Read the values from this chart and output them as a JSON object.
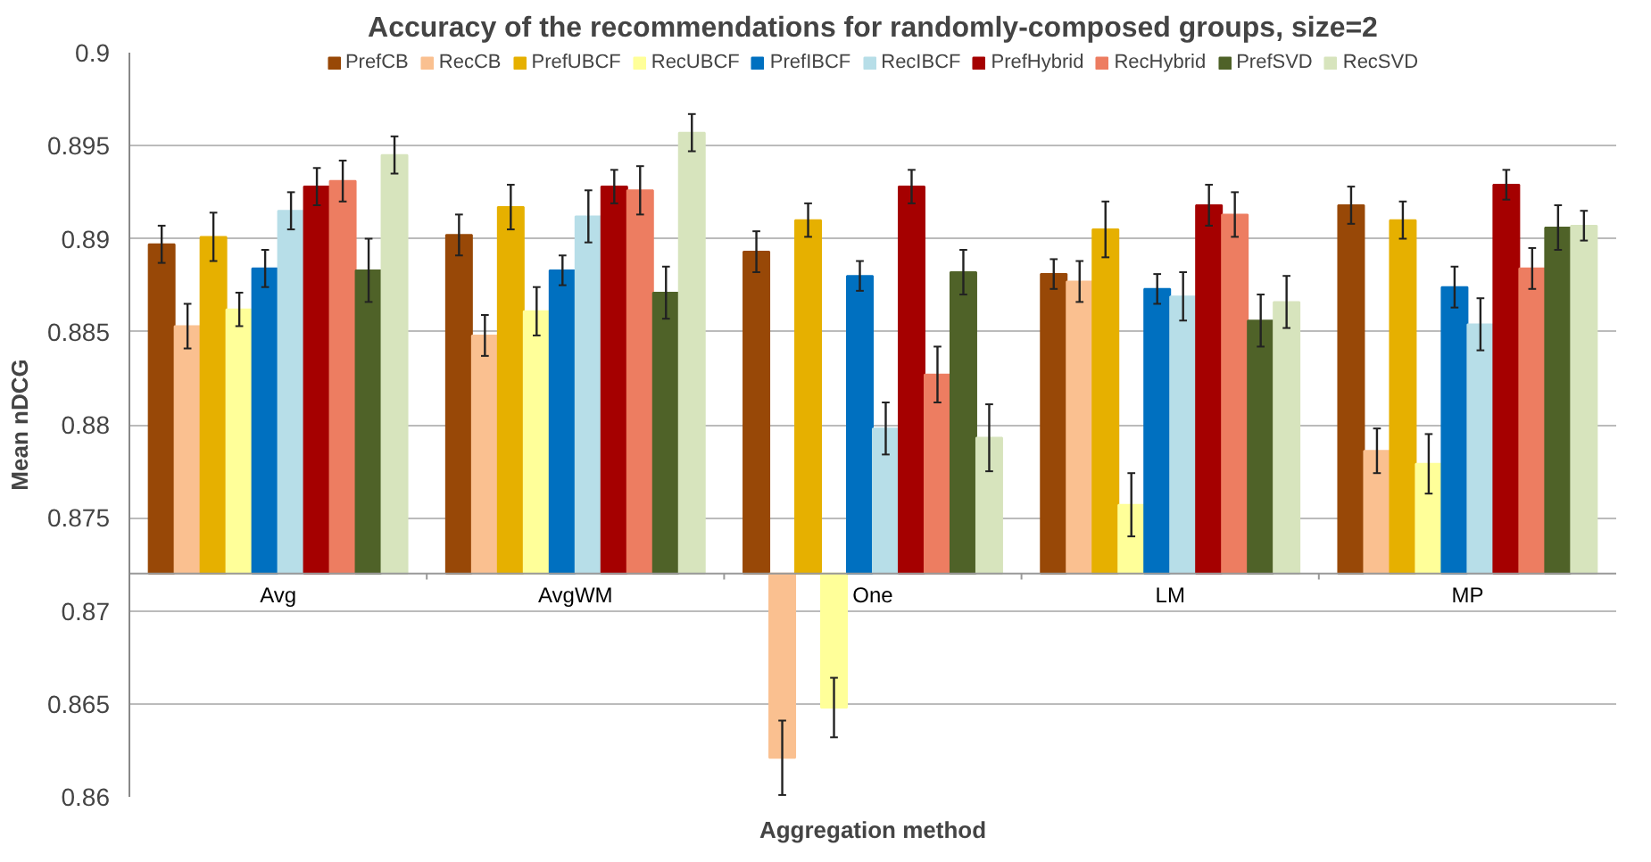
{
  "chart_data": {
    "type": "bar",
    "title": "Accuracy of the recommendations for randomly-composed groups, size=2",
    "xlabel": "Aggregation method",
    "ylabel": "Mean nDCG",
    "categories": [
      "Avg",
      "AvgWM",
      "One",
      "LM",
      "MP"
    ],
    "ylim": [
      0.86,
      0.9
    ],
    "yticks": [
      0.86,
      0.865,
      0.87,
      0.875,
      0.88,
      0.885,
      0.89,
      0.895,
      0.9
    ],
    "grid": "y",
    "legend": "top",
    "series": [
      {
        "name": "PrefCB",
        "color": "#984807",
        "base": [
          0.872,
          0.872,
          0.872,
          0.872,
          0.872
        ],
        "values": [
          0.0177,
          0.0182,
          0.0173,
          0.0161,
          0.0198
        ],
        "errors": [
          0.001,
          0.0011,
          0.0011,
          0.0008,
          0.001
        ]
      },
      {
        "name": "RecCB",
        "color": "#fac090",
        "base": [
          0.872,
          0.872,
          0.872,
          0.872,
          0.872
        ],
        "values": [
          0.0133,
          0.0128,
          -0.0099,
          0.0157,
          0.0066
        ],
        "errors": [
          0.0012,
          0.0011,
          0.002,
          0.0011,
          0.0012
        ]
      },
      {
        "name": "PrefUBCF",
        "color": "#e6b000",
        "base": [
          0.872,
          0.872,
          0.872,
          0.872,
          0.872
        ],
        "values": [
          0.0181,
          0.0197,
          0.019,
          0.0185,
          0.019
        ],
        "errors": [
          0.0013,
          0.0012,
          0.0009,
          0.0015,
          0.001
        ]
      },
      {
        "name": "RecUBCF",
        "color": "#ffff99",
        "base": [
          0.872,
          0.872,
          0.872,
          0.872,
          0.872
        ],
        "values": [
          0.0142,
          0.0141,
          -0.0072,
          0.0037,
          0.0059
        ],
        "errors": [
          0.0009,
          0.0013,
          0.0016,
          0.0017,
          0.0016
        ]
      },
      {
        "name": "PrefIBCF",
        "color": "#0070c0",
        "base": [
          0.872,
          0.872,
          0.872,
          0.872,
          0.872
        ],
        "values": [
          0.0164,
          0.0163,
          0.016,
          0.0153,
          0.0154
        ],
        "errors": [
          0.001,
          0.0008,
          0.0008,
          0.0008,
          0.0011
        ]
      },
      {
        "name": "RecIBCF",
        "color": "#b7dee8",
        "base": [
          0.872,
          0.872,
          0.872,
          0.872,
          0.872
        ],
        "values": [
          0.0195,
          0.0192,
          0.0078,
          0.0149,
          0.0134
        ],
        "errors": [
          0.001,
          0.0014,
          0.0014,
          0.0013,
          0.0014
        ]
      },
      {
        "name": "PrefHybrid",
        "color": "#a50000",
        "base": [
          0.872,
          0.872,
          0.872,
          0.872,
          0.872
        ],
        "values": [
          0.0208,
          0.0208,
          0.0208,
          0.0198,
          0.0209
        ],
        "errors": [
          0.001,
          0.0009,
          0.0009,
          0.0011,
          0.0008
        ]
      },
      {
        "name": "RecHybrid",
        "color": "#ed7d61",
        "base": [
          0.872,
          0.872,
          0.872,
          0.872,
          0.872
        ],
        "values": [
          0.0211,
          0.0206,
          0.0107,
          0.0193,
          0.0164
        ],
        "errors": [
          0.0011,
          0.0013,
          0.0015,
          0.0012,
          0.0011
        ]
      },
      {
        "name": "PrefSVD",
        "color": "#4f6228",
        "base": [
          0.872,
          0.872,
          0.872,
          0.872,
          0.872
        ],
        "values": [
          0.0163,
          0.0151,
          0.0162,
          0.0136,
          0.0186
        ],
        "errors": [
          0.0017,
          0.0014,
          0.0012,
          0.0014,
          0.0012
        ]
      },
      {
        "name": "RecSVD",
        "color": "#d7e4bd",
        "base": [
          0.872,
          0.872,
          0.872,
          0.872,
          0.872
        ],
        "values": [
          0.0225,
          0.0237,
          0.0073,
          0.0146,
          0.0187
        ],
        "errors": [
          0.001,
          0.001,
          0.0018,
          0.0014,
          0.0008
        ]
      }
    ]
  }
}
